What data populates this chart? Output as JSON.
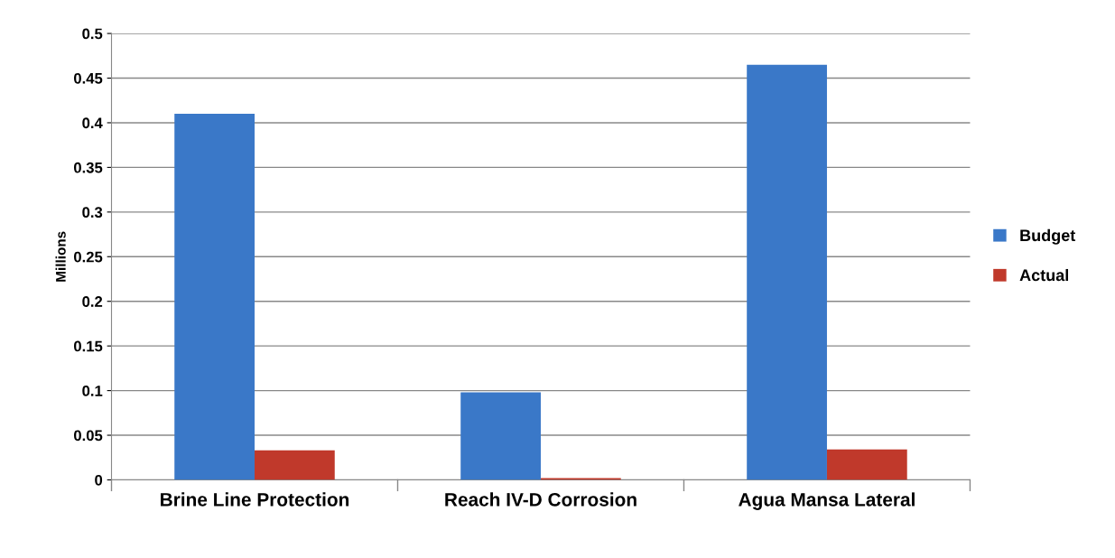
{
  "chart_data": {
    "type": "bar",
    "ylabel": "Millions",
    "categories": [
      "Brine Line Protection",
      "Reach IV-D Corrosion",
      "Agua Mansa Lateral"
    ],
    "series": [
      {
        "name": "Budget",
        "color": "#3a78c8",
        "values": [
          0.41,
          0.098,
          0.465
        ]
      },
      {
        "name": "Actual",
        "color": "#c0392b",
        "values": [
          0.033,
          0.002,
          0.034
        ]
      }
    ],
    "ylim": [
      0,
      0.5
    ],
    "yticks": [
      0,
      0.05,
      0.1,
      0.15,
      0.2,
      0.25,
      0.3,
      0.35,
      0.4,
      0.45,
      0.5
    ],
    "grid": "y",
    "legend": "right"
  }
}
